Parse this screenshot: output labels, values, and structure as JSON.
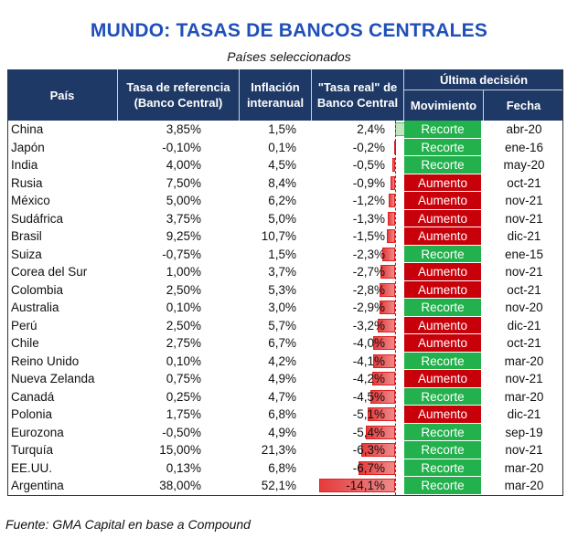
{
  "title": "MUNDO: TASAS DE BANCOS CENTRALES",
  "subtitle": "Países seleccionados",
  "headers": {
    "country": "País",
    "rate_line1": "Tasa de referencia",
    "rate_line2": "(Banco Central)",
    "inflation_line1": "Inflación",
    "inflation_line2": "interanual",
    "real_line1": "\"Tasa real\" de",
    "real_line2": "Banco Central",
    "last_decision": "Última decisión",
    "movement": "Movimiento",
    "date": "Fecha"
  },
  "colors": {
    "header_bg": "#1f3966",
    "title": "#1f4fb8",
    "recorte": "#22b14c",
    "aumento": "#c8000a"
  },
  "rows": [
    {
      "country": "China",
      "rate": "3,85%",
      "inflation": "1,5%",
      "real": "2,4%",
      "real_value": 2.4,
      "movement": "Recorte",
      "date": "abr-20"
    },
    {
      "country": "Japón",
      "rate": "-0,10%",
      "inflation": "0,1%",
      "real": "-0,2%",
      "real_value": -0.2,
      "movement": "Recorte",
      "date": "ene-16"
    },
    {
      "country": "India",
      "rate": "4,00%",
      "inflation": "4,5%",
      "real": "-0,5%",
      "real_value": -0.5,
      "movement": "Recorte",
      "date": "may-20"
    },
    {
      "country": "Rusia",
      "rate": "7,50%",
      "inflation": "8,4%",
      "real": "-0,9%",
      "real_value": -0.9,
      "movement": "Aumento",
      "date": "oct-21"
    },
    {
      "country": "México",
      "rate": "5,00%",
      "inflation": "6,2%",
      "real": "-1,2%",
      "real_value": -1.2,
      "movement": "Aumento",
      "date": "nov-21"
    },
    {
      "country": "Sudáfrica",
      "rate": "3,75%",
      "inflation": "5,0%",
      "real": "-1,3%",
      "real_value": -1.3,
      "movement": "Aumento",
      "date": "nov-21"
    },
    {
      "country": "Brasil",
      "rate": "9,25%",
      "inflation": "10,7%",
      "real": "-1,5%",
      "real_value": -1.5,
      "movement": "Aumento",
      "date": "dic-21"
    },
    {
      "country": "Suiza",
      "rate": "-0,75%",
      "inflation": "1,5%",
      "real": "-2,3%",
      "real_value": -2.3,
      "movement": "Recorte",
      "date": "ene-15"
    },
    {
      "country": "Corea del Sur",
      "rate": "1,00%",
      "inflation": "3,7%",
      "real": "-2,7%",
      "real_value": -2.7,
      "movement": "Aumento",
      "date": "nov-21"
    },
    {
      "country": "Colombia",
      "rate": "2,50%",
      "inflation": "5,3%",
      "real": "-2,8%",
      "real_value": -2.8,
      "movement": "Aumento",
      "date": "oct-21"
    },
    {
      "country": "Australia",
      "rate": "0,10%",
      "inflation": "3,0%",
      "real": "-2,9%",
      "real_value": -2.9,
      "movement": "Recorte",
      "date": "nov-20"
    },
    {
      "country": "Perú",
      "rate": "2,50%",
      "inflation": "5,7%",
      "real": "-3,2%",
      "real_value": -3.2,
      "movement": "Aumento",
      "date": "dic-21"
    },
    {
      "country": "Chile",
      "rate": "2,75%",
      "inflation": "6,7%",
      "real": "-4,0%",
      "real_value": -4.0,
      "movement": "Aumento",
      "date": "oct-21"
    },
    {
      "country": "Reino Unido",
      "rate": "0,10%",
      "inflation": "4,2%",
      "real": "-4,1%",
      "real_value": -4.1,
      "movement": "Recorte",
      "date": "mar-20"
    },
    {
      "country": "Nueva Zelanda",
      "rate": "0,75%",
      "inflation": "4,9%",
      "real": "-4,2%",
      "real_value": -4.2,
      "movement": "Aumento",
      "date": "nov-21"
    },
    {
      "country": "Canadá",
      "rate": "0,25%",
      "inflation": "4,7%",
      "real": "-4,5%",
      "real_value": -4.5,
      "movement": "Recorte",
      "date": "mar-20"
    },
    {
      "country": "Polonia",
      "rate": "1,75%",
      "inflation": "6,8%",
      "real": "-5,1%",
      "real_value": -5.1,
      "movement": "Aumento",
      "date": "dic-21"
    },
    {
      "country": "Eurozona",
      "rate": "-0,50%",
      "inflation": "4,9%",
      "real": "-5,4%",
      "real_value": -5.4,
      "movement": "Recorte",
      "date": "sep-19"
    },
    {
      "country": "Turquía",
      "rate": "15,00%",
      "inflation": "21,3%",
      "real": "-6,3%",
      "real_value": -6.3,
      "movement": "Recorte",
      "date": "nov-21"
    },
    {
      "country": "EE.UU.",
      "rate": "0,13%",
      "inflation": "6,8%",
      "real": "-6,7%",
      "real_value": -6.7,
      "movement": "Recorte",
      "date": "mar-20"
    },
    {
      "country": "Argentina",
      "rate": "38,00%",
      "inflation": "52,1%",
      "real": "-14,1%",
      "real_value": -14.1,
      "movement": "Recorte",
      "date": "mar-20"
    }
  ],
  "source": "Fuente: GMA Capital en base a Compound"
}
